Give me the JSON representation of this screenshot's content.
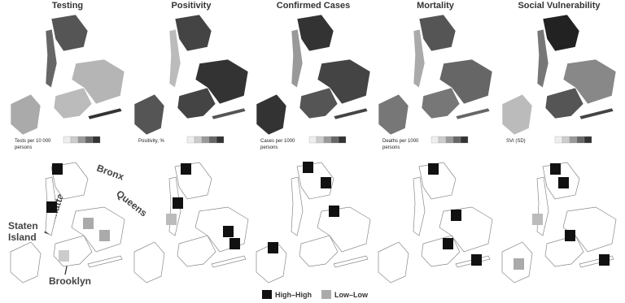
{
  "panels": [
    {
      "title": "Testing",
      "legend_title": [
        "Tests per 10 000",
        "persons"
      ]
    },
    {
      "title": "Positivity",
      "legend_title": [
        "Positivity, %"
      ]
    },
    {
      "title": "Confirmed Cases",
      "legend_title": [
        "Cases per 1000",
        "persons"
      ]
    },
    {
      "title": "Mortality",
      "legend_title": [
        "Deaths per 1000",
        "persons"
      ]
    },
    {
      "title": "Social Vulnerability",
      "legend_title": [
        "SVI (SD)"
      ]
    }
  ],
  "borough_labels": {
    "bronx": "Bronx",
    "manhattan": "Manhattan",
    "queens": "Queens",
    "staten_island": [
      "Staten",
      "Island"
    ],
    "brooklyn": "Brooklyn"
  },
  "legend": [
    "High–High",
    "Low–Low"
  ]
}
